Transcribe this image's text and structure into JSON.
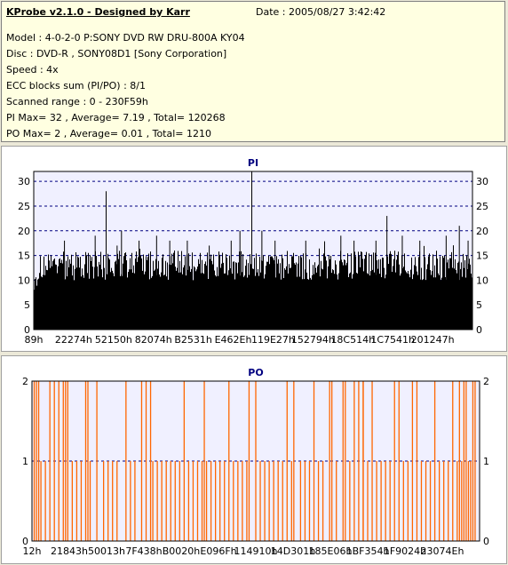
{
  "header": {
    "title": "KProbe v2.1.0 - Designed by Karr",
    "date": "Date : 2005/08/27 3:42:42",
    "lines": [
      "Model : 4-0-2-0 P:SONY    DVD RW DRU-800A  KY04",
      "Disc : DVD-R , SONY08D1 [Sony Corporation]",
      "Speed : 4x",
      "ECC blocks sum (PI/PO) : 8/1",
      "Scanned range : 0 - 230F59h",
      "PI Max= 32 , Average= 7.19 , Total= 120268",
      "PO Max= 2 , Average= 0.01 , Total= 1210"
    ]
  },
  "colors": {
    "pi_bars": "#000000",
    "po_bars": "#ff6600",
    "plot_bg": "#f0f0ff",
    "grid": "#000080",
    "panel_title": "#000080"
  },
  "chart_data": [
    {
      "type": "bar",
      "title": "PI",
      "ylim": [
        0,
        32
      ],
      "yticks": [
        0,
        5,
        10,
        15,
        20,
        25,
        30
      ],
      "xticks": [
        "89h",
        "22274h",
        "52150h",
        "82074h",
        "B2531h",
        "E462Eh",
        "119E27h",
        "152794h",
        "18C514h",
        "1C7541h",
        "201247h"
      ],
      "grid": true,
      "baseline_range": [
        10,
        16
      ],
      "spikes": [
        {
          "x": 0.0,
          "y": 17
        },
        {
          "x": 0.07,
          "y": 18
        },
        {
          "x": 0.14,
          "y": 19
        },
        {
          "x": 0.165,
          "y": 28
        },
        {
          "x": 0.19,
          "y": 17
        },
        {
          "x": 0.2,
          "y": 20
        },
        {
          "x": 0.24,
          "y": 18
        },
        {
          "x": 0.28,
          "y": 19
        },
        {
          "x": 0.31,
          "y": 18
        },
        {
          "x": 0.35,
          "y": 18
        },
        {
          "x": 0.4,
          "y": 17
        },
        {
          "x": 0.45,
          "y": 18
        },
        {
          "x": 0.47,
          "y": 20
        },
        {
          "x": 0.497,
          "y": 32
        },
        {
          "x": 0.52,
          "y": 20
        },
        {
          "x": 0.55,
          "y": 18
        },
        {
          "x": 0.62,
          "y": 18
        },
        {
          "x": 0.7,
          "y": 19
        },
        {
          "x": 0.73,
          "y": 18
        },
        {
          "x": 0.78,
          "y": 18
        },
        {
          "x": 0.805,
          "y": 23
        },
        {
          "x": 0.84,
          "y": 19
        },
        {
          "x": 0.88,
          "y": 18
        },
        {
          "x": 0.94,
          "y": 19
        },
        {
          "x": 0.97,
          "y": 21
        },
        {
          "x": 0.99,
          "y": 18
        }
      ]
    },
    {
      "type": "bar",
      "title": "PO",
      "ylim": [
        0,
        2
      ],
      "yticks": [
        0,
        1,
        2
      ],
      "xticks": [
        "12h",
        "21843h",
        "50013h",
        "7F438h",
        "B0020h",
        "E096Fh",
        "114910h",
        "14D301h",
        "185E06h",
        "1BF354h",
        "1F9024h",
        "23074Eh"
      ],
      "grid": true,
      "events_value_2": [
        0.005,
        0.01,
        0.015,
        0.04,
        0.05,
        0.06,
        0.07,
        0.075,
        0.08,
        0.12,
        0.125,
        0.145,
        0.21,
        0.245,
        0.255,
        0.265,
        0.34,
        0.385,
        0.44,
        0.485,
        0.5,
        0.57,
        0.585,
        0.63,
        0.665,
        0.67,
        0.695,
        0.7,
        0.72,
        0.73,
        0.74,
        0.74,
        0.76,
        0.81,
        0.82,
        0.85,
        0.86,
        0.9,
        0.94,
        0.955,
        0.965,
        0.97,
        0.985,
        0.99
      ],
      "events_value_1": [
        0.02,
        0.03,
        0.09,
        0.1,
        0.11,
        0.13,
        0.16,
        0.17,
        0.18,
        0.19,
        0.22,
        0.23,
        0.27,
        0.28,
        0.29,
        0.3,
        0.31,
        0.32,
        0.33,
        0.35,
        0.36,
        0.37,
        0.38,
        0.39,
        0.4,
        0.41,
        0.42,
        0.43,
        0.45,
        0.46,
        0.47,
        0.48,
        0.51,
        0.52,
        0.53,
        0.54,
        0.55,
        0.56,
        0.58,
        0.6,
        0.61,
        0.62,
        0.64,
        0.65,
        0.68,
        0.71,
        0.75,
        0.77,
        0.78,
        0.79,
        0.8,
        0.83,
        0.84,
        0.87,
        0.88,
        0.89,
        0.91,
        0.92,
        0.93,
        0.95,
        0.96,
        0.975,
        0.98
      ]
    }
  ]
}
